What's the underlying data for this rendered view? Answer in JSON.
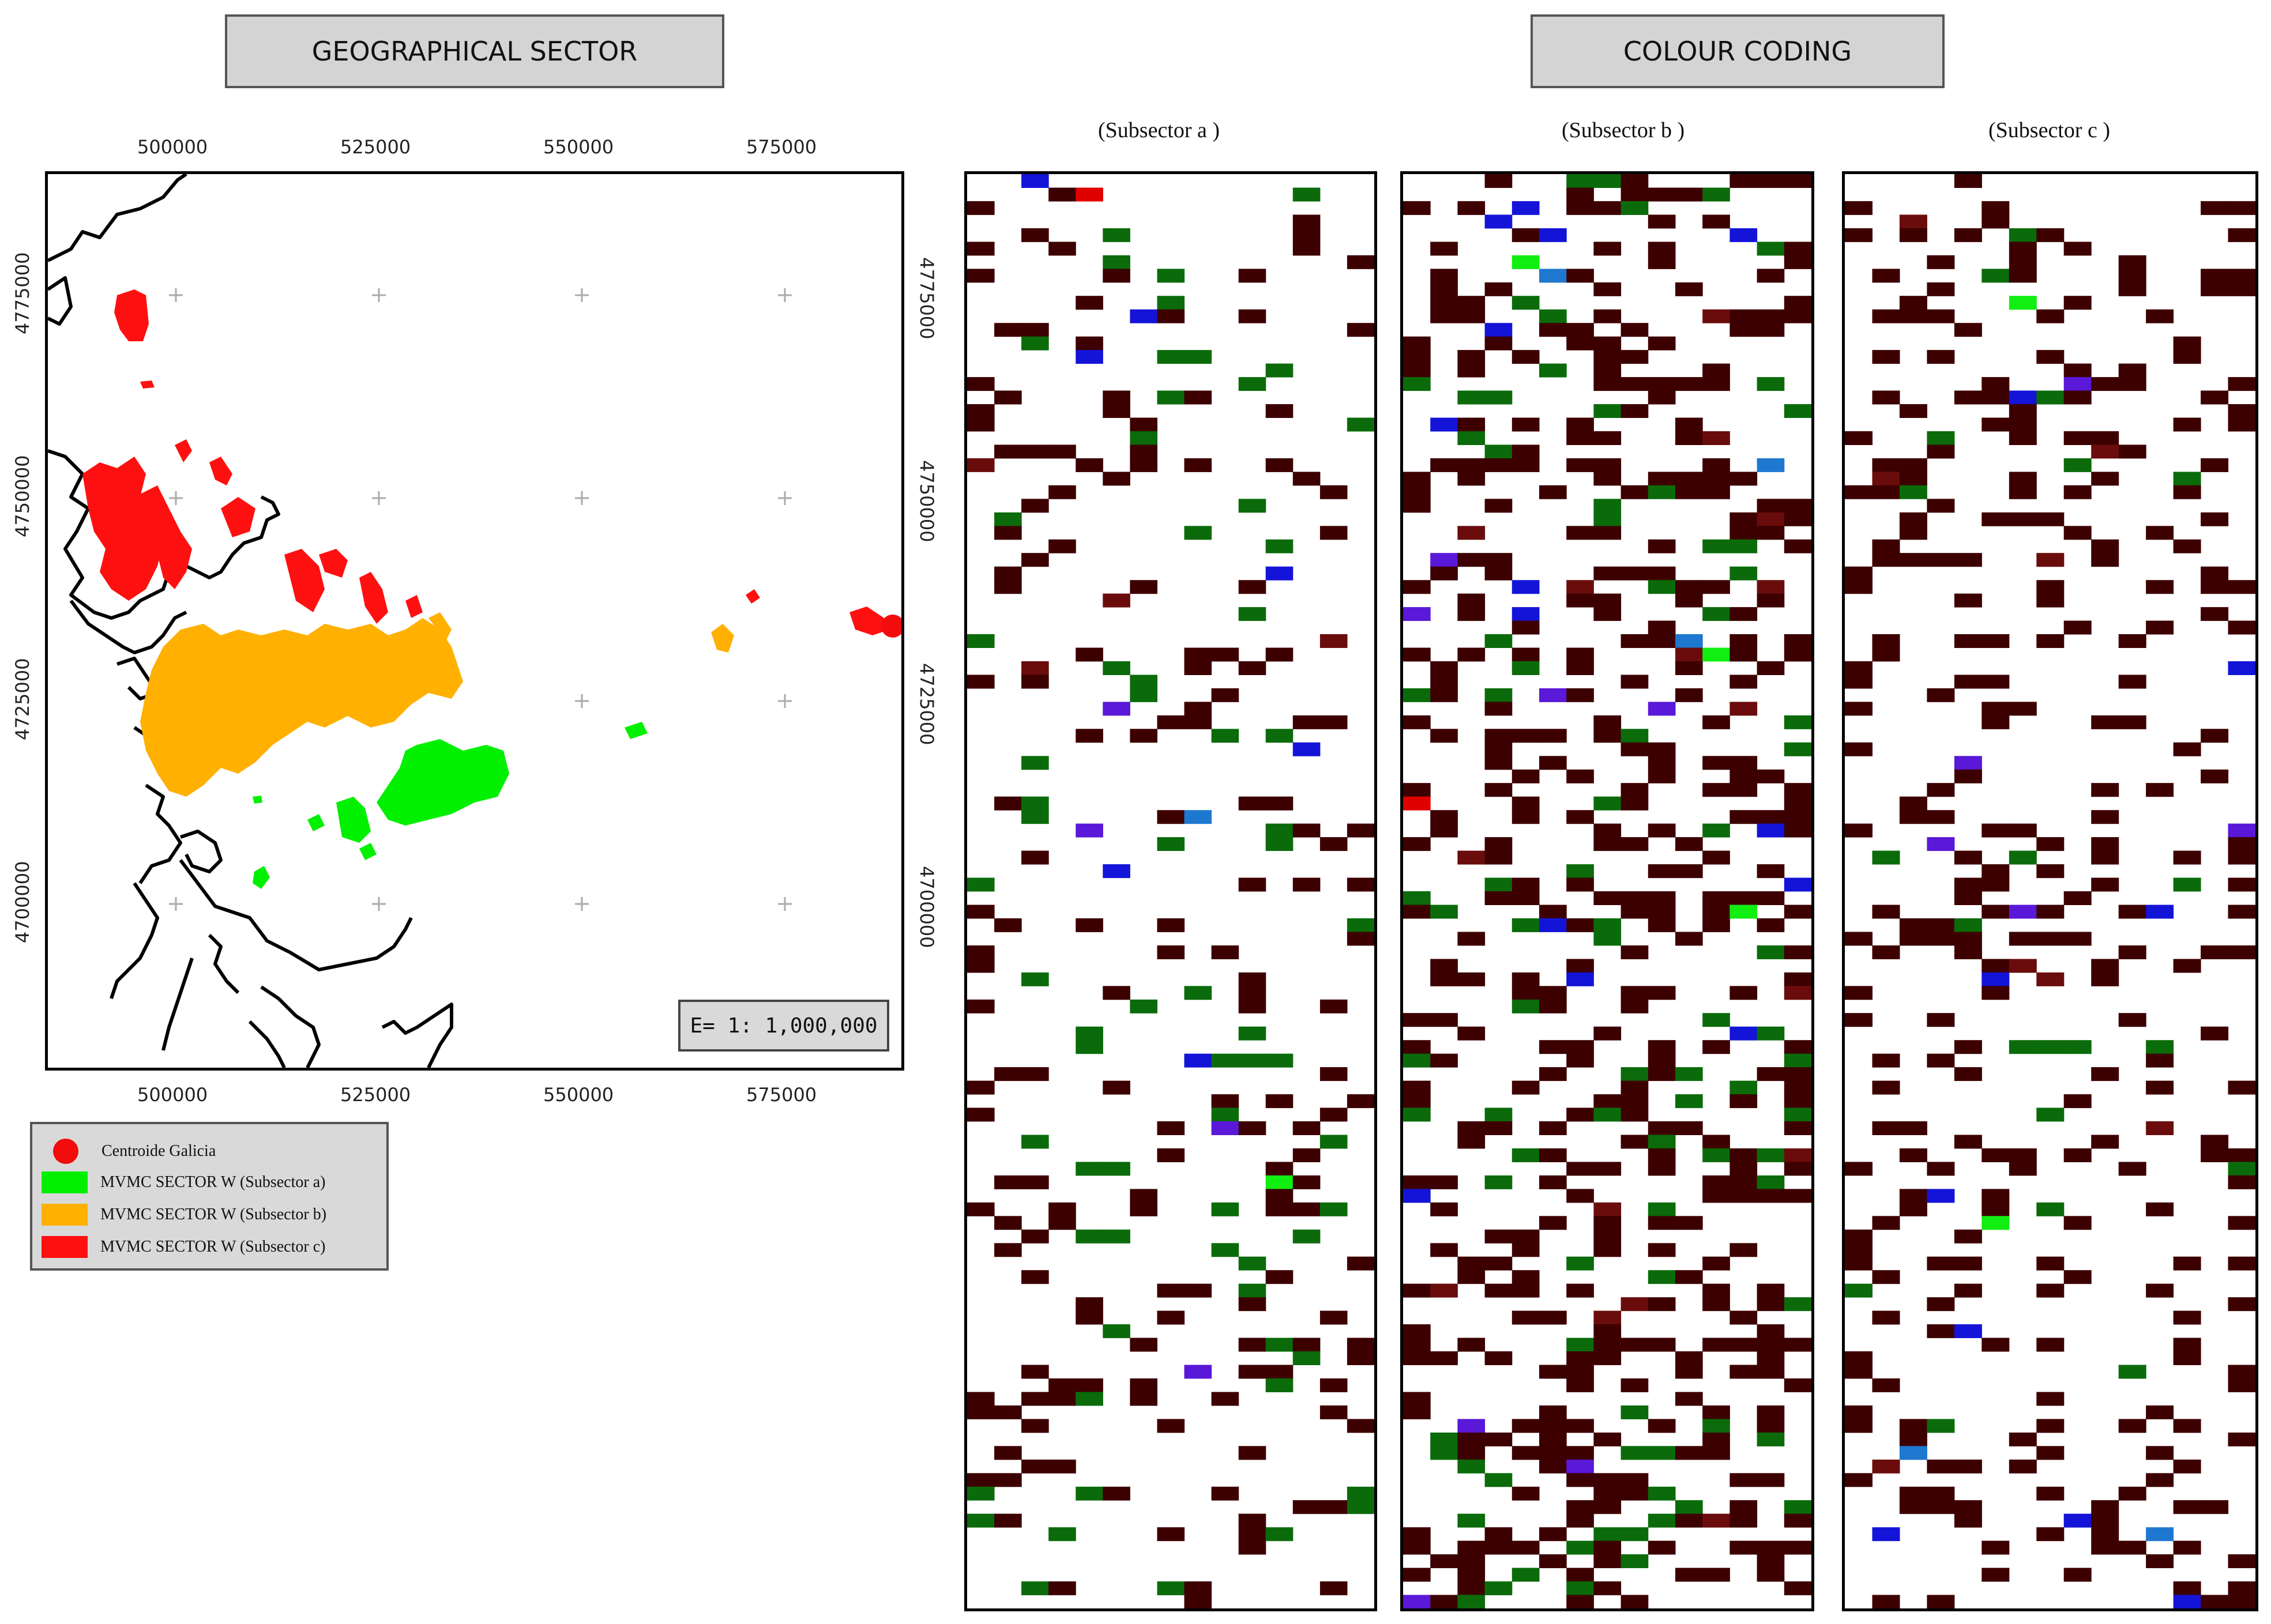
{
  "headers": {
    "geo_title": "GEOGRAPHICAL SECTOR",
    "colour_title": "COLOUR CODING"
  },
  "map": {
    "x_ticks": [
      "500000",
      "525000",
      "550000",
      "575000"
    ],
    "y_ticks": [
      "4775000",
      "4750000",
      "4725000",
      "4700000"
    ],
    "scale_label": "E= 1: 1,000,000"
  },
  "legend": {
    "items": [
      {
        "label": "Centroide Galicia",
        "color": "#f20c0c",
        "kind": "dot"
      },
      {
        "label": "MVMC SECTOR W (Subsector a)",
        "color": "#00f000",
        "kind": "swatch"
      },
      {
        "label": "MVMC SECTOR W (Subsector b)",
        "color": "#ffb000",
        "kind": "swatch"
      },
      {
        "label": "MVMC SECTOR W (Subsector c)",
        "color": "#ff1010",
        "kind": "swatch"
      }
    ]
  },
  "panels": [
    {
      "title": "(Subsector  a )",
      "seed": 11,
      "density": 0.16,
      "green": 0.22
    },
    {
      "title": "(Subsector b )",
      "seed": 29,
      "density": 0.34,
      "green": 0.16
    },
    {
      "title": "(Subsector c )",
      "seed": 47,
      "density": 0.2,
      "green": 0.08
    }
  ],
  "colors": {
    "dark_brown": "#3d0000",
    "dark_red": "#6b0c0c",
    "dark_green": "#0b6b0b",
    "bright_green": "#11ee11",
    "blue": "#1414d8",
    "violet": "#5a18d8",
    "light_blue": "#1f78d0",
    "olive": "#6b6b0b",
    "red": "#e00000"
  }
}
